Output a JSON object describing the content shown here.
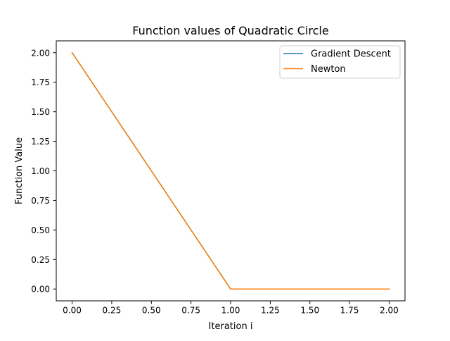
{
  "chart_data": {
    "type": "line",
    "title": "Function values of Quadratic Circle",
    "xlabel": "Iteration i",
    "ylabel": "Function Value",
    "xlim": [
      -0.1,
      2.1
    ],
    "ylim": [
      -0.1,
      2.1
    ],
    "xticks": [
      0.0,
      0.25,
      0.5,
      0.75,
      1.0,
      1.25,
      1.5,
      1.75,
      2.0
    ],
    "xtick_labels": [
      "0.00",
      "0.25",
      "0.50",
      "0.75",
      "1.00",
      "1.25",
      "1.50",
      "1.75",
      "2.00"
    ],
    "yticks": [
      0.0,
      0.25,
      0.5,
      0.75,
      1.0,
      1.25,
      1.5,
      1.75,
      2.0
    ],
    "ytick_labels": [
      "0.00",
      "0.25",
      "0.50",
      "0.75",
      "1.00",
      "1.25",
      "1.50",
      "1.75",
      "2.00"
    ],
    "grid": false,
    "legend_position": "upper right",
    "series": [
      {
        "name": "Gradient Descent",
        "color": "#1f77b4",
        "x": [
          0,
          1,
          2
        ],
        "y": [
          2.0,
          0.0,
          0.0
        ]
      },
      {
        "name": "Newton",
        "color": "#ff7f0e",
        "x": [
          0,
          1,
          2
        ],
        "y": [
          2.0,
          0.0,
          0.0
        ]
      }
    ]
  }
}
